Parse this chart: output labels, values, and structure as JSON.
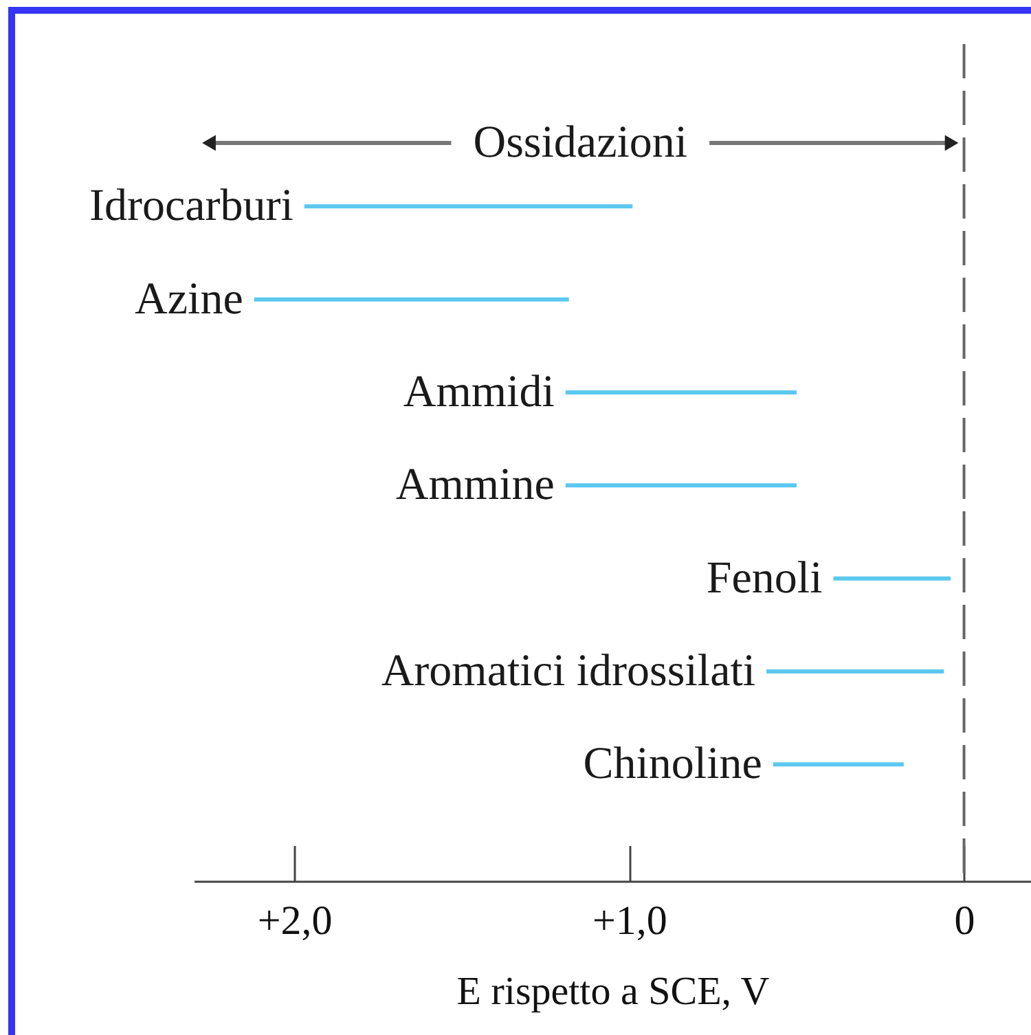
{
  "chart_data": {
    "type": "bar",
    "orientation": "horizontal",
    "categories": [
      "Idrocarburi",
      "Azine",
      "Ammidi",
      "Ammine",
      "Fenoli",
      "Aromatici idrossilati",
      "Chinoline"
    ],
    "base": [
      0.99,
      1.18,
      0.5,
      0.5,
      0.04,
      0.06,
      0.18
    ],
    "values": [
      0.98,
      0.94,
      0.69,
      0.69,
      0.35,
      0.53,
      0.39
    ],
    "color": "#5bc8f0",
    "xlim": [
      2.3,
      -0.2
    ],
    "xticks": [
      {
        "value": 2,
        "label": "+2,0"
      },
      {
        "value": 1,
        "label": "+1,0"
      },
      0
    ],
    "xlabel": "E rispetto a SCE, V",
    "ref_lines": [
      {
        "axis": "x",
        "value": 0,
        "color": "#666666",
        "line_style": "dashed"
      }
    ],
    "annotations": [
      "Ossidazioni"
    ]
  }
}
